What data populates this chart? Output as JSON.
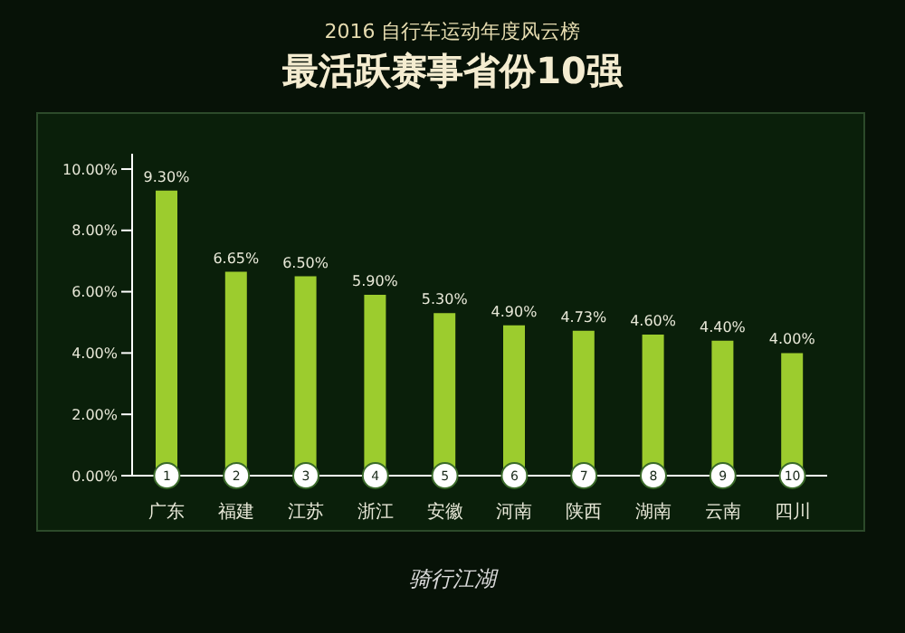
{
  "chart_data": {
    "type": "bar",
    "subtitle": "2016 自行车运动年度风云榜",
    "title": "最活跃赛事省份10强",
    "categories": [
      "广东",
      "福建",
      "江苏",
      "浙江",
      "安徽",
      "河南",
      "陕西",
      "湖南",
      "云南",
      "四川"
    ],
    "values": [
      9.3,
      6.65,
      6.5,
      5.9,
      5.3,
      4.9,
      4.73,
      4.6,
      4.4,
      4.0
    ],
    "value_labels": [
      "9.30%",
      "6.65%",
      "6.50%",
      "5.90%",
      "5.30%",
      "4.90%",
      "4.73%",
      "4.60%",
      "4.40%",
      "4.00%"
    ],
    "color": "#9ccc2e",
    "ylim": [
      0,
      10.5
    ],
    "yticks": [
      {
        "value": 0,
        "label": "0.00%"
      },
      {
        "value": 2,
        "label": "2.00%"
      },
      {
        "value": 4,
        "label": "4.00%"
      },
      {
        "value": 6,
        "label": "6.00%"
      },
      {
        "value": 8,
        "label": "8.00%"
      },
      {
        "value": 10,
        "label": "10.00%"
      }
    ],
    "grid": false,
    "legend": false,
    "annotations": [
      {
        "text": "1",
        "x": "广东",
        "y": 0
      },
      {
        "text": "2",
        "x": "福建",
        "y": 0
      },
      {
        "text": "3",
        "x": "江苏",
        "y": 0
      },
      {
        "text": "4",
        "x": "浙江",
        "y": 0
      },
      {
        "text": "5",
        "x": "安徽",
        "y": 0
      },
      {
        "text": "6",
        "x": "河南",
        "y": 0
      },
      {
        "text": "7",
        "x": "陕西",
        "y": 0
      },
      {
        "text": "8",
        "x": "湖南",
        "y": 0
      },
      {
        "text": "9",
        "x": "云南",
        "y": 0
      },
      {
        "text": "10",
        "x": "四川",
        "y": 0
      },
      "骑行江湖"
    ]
  }
}
